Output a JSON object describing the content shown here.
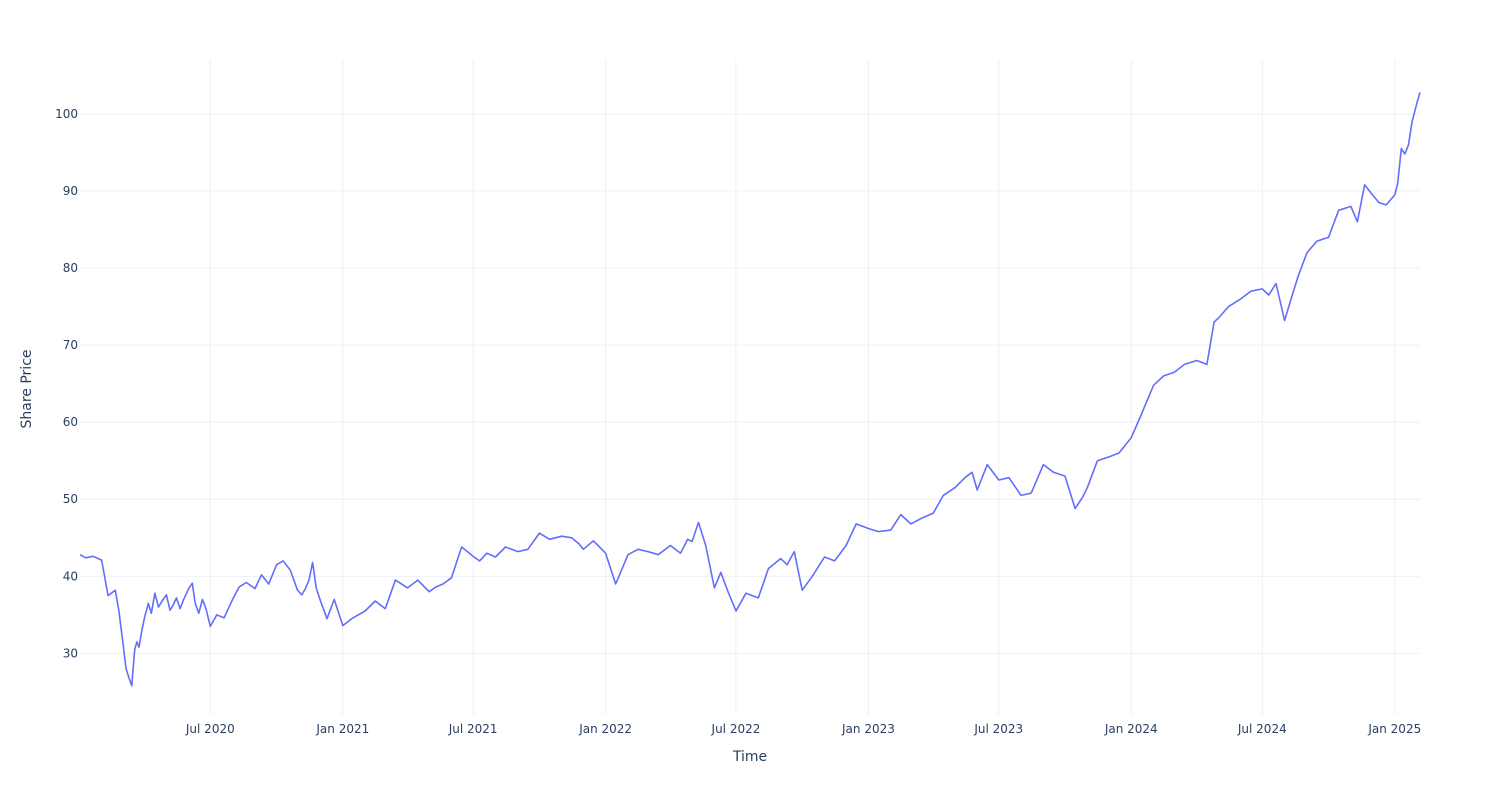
{
  "chart_data": {
    "type": "line",
    "xlabel": "Time",
    "ylabel": "Share Price",
    "x_tick_labels": [
      "Jul 2020",
      "Jan 2021",
      "Jul 2021",
      "Jan 2022",
      "Jul 2022",
      "Jan 2023",
      "Jul 2023",
      "Jan 2024",
      "Jul 2024",
      "Jan 2025"
    ],
    "x_tick_dates": [
      "2020-07-01",
      "2021-01-01",
      "2021-07-01",
      "2022-01-01",
      "2022-07-01",
      "2023-01-01",
      "2023-07-01",
      "2024-01-01",
      "2024-07-01",
      "2025-01-01"
    ],
    "y_ticks": [
      30,
      40,
      50,
      60,
      70,
      80,
      90,
      100
    ],
    "x_range": [
      "2020-01-02",
      "2025-02-05"
    ],
    "y_range": [
      22,
      107
    ],
    "grid": true,
    "line_color": "#636efa",
    "series": [
      {
        "x": [
          "2020-01-02",
          "2020-01-10",
          "2020-01-20",
          "2020-02-01",
          "2020-02-10",
          "2020-02-20",
          "2020-02-25",
          "2020-03-01",
          "2020-03-06",
          "2020-03-10",
          "2020-03-14",
          "2020-03-18",
          "2020-03-21",
          "2020-03-24",
          "2020-03-28",
          "2020-04-01",
          "2020-04-06",
          "2020-04-10",
          "2020-04-15",
          "2020-04-20",
          "2020-04-25",
          "2020-05-01",
          "2020-05-06",
          "2020-05-10",
          "2020-05-15",
          "2020-05-20",
          "2020-05-25",
          "2020-06-01",
          "2020-06-06",
          "2020-06-10",
          "2020-06-15",
          "2020-06-20",
          "2020-06-25",
          "2020-07-01",
          "2020-07-10",
          "2020-07-20",
          "2020-08-01",
          "2020-08-10",
          "2020-08-20",
          "2020-09-01",
          "2020-09-10",
          "2020-09-20",
          "2020-10-01",
          "2020-10-10",
          "2020-10-20",
          "2020-10-30",
          "2020-11-05",
          "2020-11-10",
          "2020-11-15",
          "2020-11-20",
          "2020-11-25",
          "2020-12-01",
          "2020-12-10",
          "2020-12-20",
          "2021-01-01",
          "2021-01-15",
          "2021-02-01",
          "2021-02-15",
          "2021-03-01",
          "2021-03-15",
          "2021-04-01",
          "2021-04-15",
          "2021-05-01",
          "2021-05-10",
          "2021-05-20",
          "2021-06-01",
          "2021-06-15",
          "2021-07-01",
          "2021-07-10",
          "2021-07-20",
          "2021-08-01",
          "2021-08-15",
          "2021-09-01",
          "2021-09-15",
          "2021-10-01",
          "2021-10-15",
          "2021-11-01",
          "2021-11-15",
          "2021-11-25",
          "2021-12-01",
          "2021-12-15",
          "2022-01-01",
          "2022-01-15",
          "2022-02-01",
          "2022-02-15",
          "2022-03-01",
          "2022-03-15",
          "2022-04-01",
          "2022-04-15",
          "2022-04-25",
          "2022-05-01",
          "2022-05-10",
          "2022-05-20",
          "2022-06-01",
          "2022-06-10",
          "2022-06-20",
          "2022-07-01",
          "2022-07-15",
          "2022-08-01",
          "2022-08-15",
          "2022-09-01",
          "2022-09-10",
          "2022-09-20",
          "2022-10-01",
          "2022-10-15",
          "2022-11-01",
          "2022-11-15",
          "2022-12-01",
          "2022-12-15",
          "2023-01-01",
          "2023-01-15",
          "2023-02-01",
          "2023-02-15",
          "2023-03-01",
          "2023-03-15",
          "2023-04-01",
          "2023-04-15",
          "2023-05-01",
          "2023-05-15",
          "2023-05-25",
          "2023-06-01",
          "2023-06-15",
          "2023-07-01",
          "2023-07-15",
          "2023-08-01",
          "2023-08-15",
          "2023-09-01",
          "2023-09-15",
          "2023-10-01",
          "2023-10-15",
          "2023-10-25",
          "2023-11-01",
          "2023-11-15",
          "2023-12-01",
          "2023-12-15",
          "2024-01-01",
          "2024-01-15",
          "2024-02-01",
          "2024-02-15",
          "2024-03-01",
          "2024-03-15",
          "2024-04-01",
          "2024-04-15",
          "2024-04-25",
          "2024-05-01",
          "2024-05-15",
          "2024-06-01",
          "2024-06-15",
          "2024-07-01",
          "2024-07-10",
          "2024-07-20",
          "2024-08-01",
          "2024-08-10",
          "2024-08-20",
          "2024-09-01",
          "2024-09-15",
          "2024-10-01",
          "2024-10-15",
          "2024-11-01",
          "2024-11-10",
          "2024-11-20",
          "2024-12-01",
          "2024-12-10",
          "2024-12-20",
          "2025-01-01",
          "2025-01-05",
          "2025-01-10",
          "2025-01-15",
          "2025-01-20",
          "2025-01-25",
          "2025-02-01",
          "2025-02-05"
        ],
        "y": [
          42.8,
          42.4,
          42.6,
          42.1,
          37.5,
          38.2,
          35.5,
          31.8,
          28.0,
          26.8,
          25.8,
          30.5,
          31.5,
          30.8,
          33.0,
          34.8,
          36.5,
          35.2,
          37.8,
          36.0,
          36.8,
          37.6,
          35.6,
          36.2,
          37.2,
          35.8,
          37.0,
          38.4,
          39.1,
          36.5,
          35.2,
          37.0,
          35.8,
          33.5,
          35.0,
          34.6,
          37.0,
          38.6,
          39.2,
          38.4,
          40.2,
          39.0,
          41.5,
          42.0,
          40.8,
          38.2,
          37.6,
          38.4,
          39.5,
          41.8,
          38.5,
          36.8,
          34.5,
          37.0,
          33.6,
          34.6,
          35.5,
          36.8,
          35.8,
          39.5,
          38.5,
          39.5,
          38.0,
          38.6,
          39.0,
          39.8,
          43.8,
          42.6,
          42.0,
          43.0,
          42.5,
          43.8,
          43.2,
          43.5,
          45.6,
          44.8,
          45.2,
          45.0,
          44.2,
          43.5,
          44.6,
          43.0,
          39.0,
          42.8,
          43.5,
          43.2,
          42.8,
          44.0,
          43.0,
          44.8,
          44.5,
          47.0,
          44.0,
          38.5,
          40.5,
          38.0,
          35.5,
          37.8,
          37.2,
          41.0,
          42.3,
          41.5,
          43.2,
          38.2,
          40.0,
          42.5,
          42.0,
          44.0,
          46.8,
          46.2,
          45.8,
          46.0,
          48.0,
          46.8,
          47.5,
          48.2,
          50.5,
          51.5,
          52.8,
          53.5,
          51.2,
          54.5,
          52.5,
          52.8,
          50.5,
          50.8,
          54.5,
          53.5,
          53.0,
          48.8,
          50.2,
          51.5,
          55.0,
          55.5,
          56.0,
          58.0,
          61.0,
          64.8,
          66.0,
          66.5,
          67.5,
          68.0,
          67.5,
          73.0,
          73.5,
          75.0,
          76.0,
          77.0,
          77.3,
          76.5,
          78.0,
          73.2,
          76.0,
          79.0,
          82.0,
          83.5,
          84.0,
          87.5,
          88.0,
          86.0,
          90.8,
          89.5,
          88.5,
          88.2,
          89.5,
          91.0,
          95.5,
          94.8,
          96.0,
          99.0,
          101.5,
          102.8
        ]
      }
    ]
  }
}
